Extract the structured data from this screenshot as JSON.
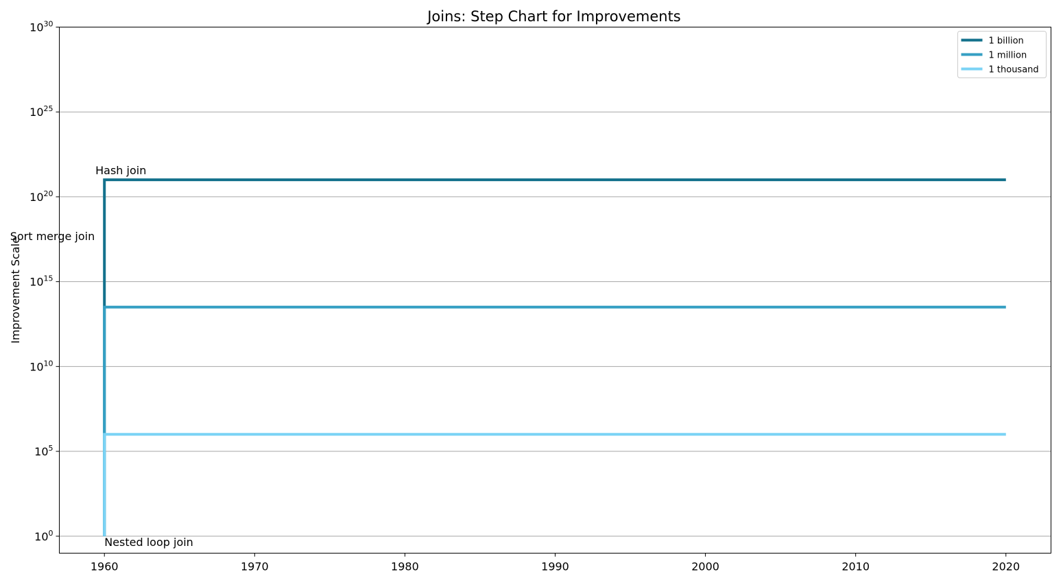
{
  "chart_data": {
    "type": "line",
    "step": true,
    "title": "Joins: Step Chart for Improvements",
    "xlabel": "",
    "ylabel": "Improvement Scale",
    "xlim": [
      1957,
      2023
    ],
    "ylim_log10": [
      -1,
      30
    ],
    "y_scale": "log",
    "grid": "y",
    "legend_position": "top-right",
    "x_ticks": [
      {
        "value": 1960,
        "label": "1960"
      },
      {
        "value": 1970,
        "label": "1970"
      },
      {
        "value": 1980,
        "label": "1980"
      },
      {
        "value": 1990,
        "label": "1990"
      },
      {
        "value": 2000,
        "label": "2000"
      },
      {
        "value": 2010,
        "label": "2010"
      },
      {
        "value": 2020,
        "label": "2020"
      }
    ],
    "y_ticks": [
      {
        "exp": 0,
        "base": "10",
        "sup": "0"
      },
      {
        "exp": 5,
        "base": "10",
        "sup": "5"
      },
      {
        "exp": 10,
        "base": "10",
        "sup": "10"
      },
      {
        "exp": 15,
        "base": "10",
        "sup": "15"
      },
      {
        "exp": 20,
        "base": "10",
        "sup": "20"
      },
      {
        "exp": 25,
        "base": "10",
        "sup": "25"
      },
      {
        "exp": 30,
        "base": "10",
        "sup": "30"
      }
    ],
    "series": [
      {
        "name": "1 billion",
        "color": "#13718c",
        "points": [
          {
            "x": 1960,
            "y_log10": 0
          },
          {
            "x": 1960,
            "y_log10": 13.35
          },
          {
            "x": 1960,
            "y_log10": 21
          },
          {
            "x": 2020,
            "y_log10": 21
          }
        ]
      },
      {
        "name": "1 million",
        "color": "#359fc3",
        "points": [
          {
            "x": 1960,
            "y_log10": 0
          },
          {
            "x": 1960,
            "y_log10": 6
          },
          {
            "x": 1960,
            "y_log10": 13.5
          },
          {
            "x": 2020,
            "y_log10": 13.5
          }
        ]
      },
      {
        "name": "1 thousand",
        "color": "#7bd3f5",
        "points": [
          {
            "x": 1960,
            "y_log10": 0
          },
          {
            "x": 1960,
            "y_log10": 6
          },
          {
            "x": 2020,
            "y_log10": 6
          }
        ]
      }
    ],
    "annotations": [
      {
        "text": "Hash join",
        "x": 1960,
        "y_log10": 21,
        "anchor": "middle",
        "dx": 24,
        "dy": -8
      },
      {
        "text": "Sort merge join",
        "x": 1960,
        "y_log10": 17.7,
        "anchor": "end",
        "dx": -14,
        "dy": 6
      },
      {
        "text": "Nested loop join",
        "x": 1960,
        "y_log10": 0,
        "anchor": "start",
        "dx": 0,
        "dy": 14
      }
    ]
  }
}
